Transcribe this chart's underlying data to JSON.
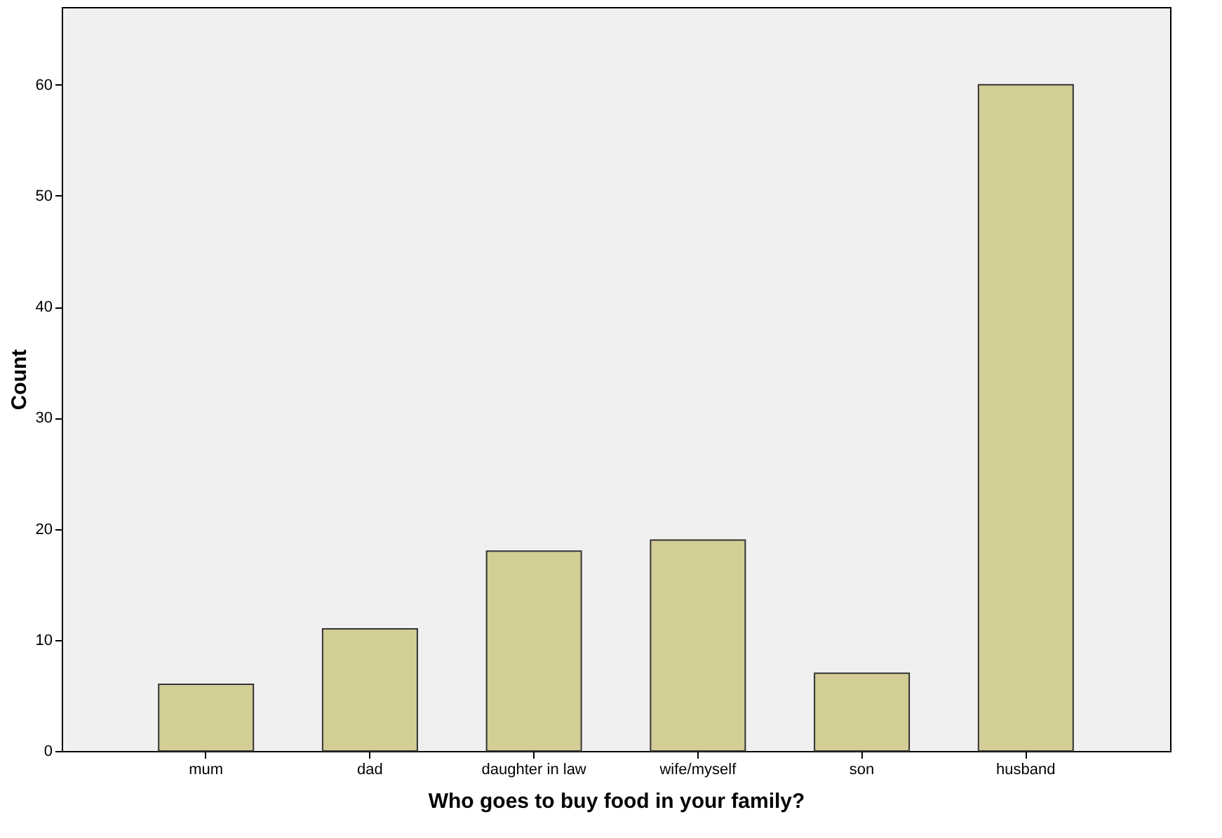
{
  "chart_data": {
    "type": "bar",
    "xlabel": "Who goes to buy food in your family?",
    "ylabel": "Count",
    "categories": [
      "mum",
      "dad",
      "daughter in law",
      "wife/myself",
      "son",
      "husband"
    ],
    "values": [
      6,
      11,
      18,
      19,
      7,
      60
    ],
    "color": "#d3cd96",
    "ylim": [
      0,
      67
    ],
    "yticks": [
      0,
      10,
      20,
      30,
      40,
      50,
      60
    ],
    "grid": false
  }
}
